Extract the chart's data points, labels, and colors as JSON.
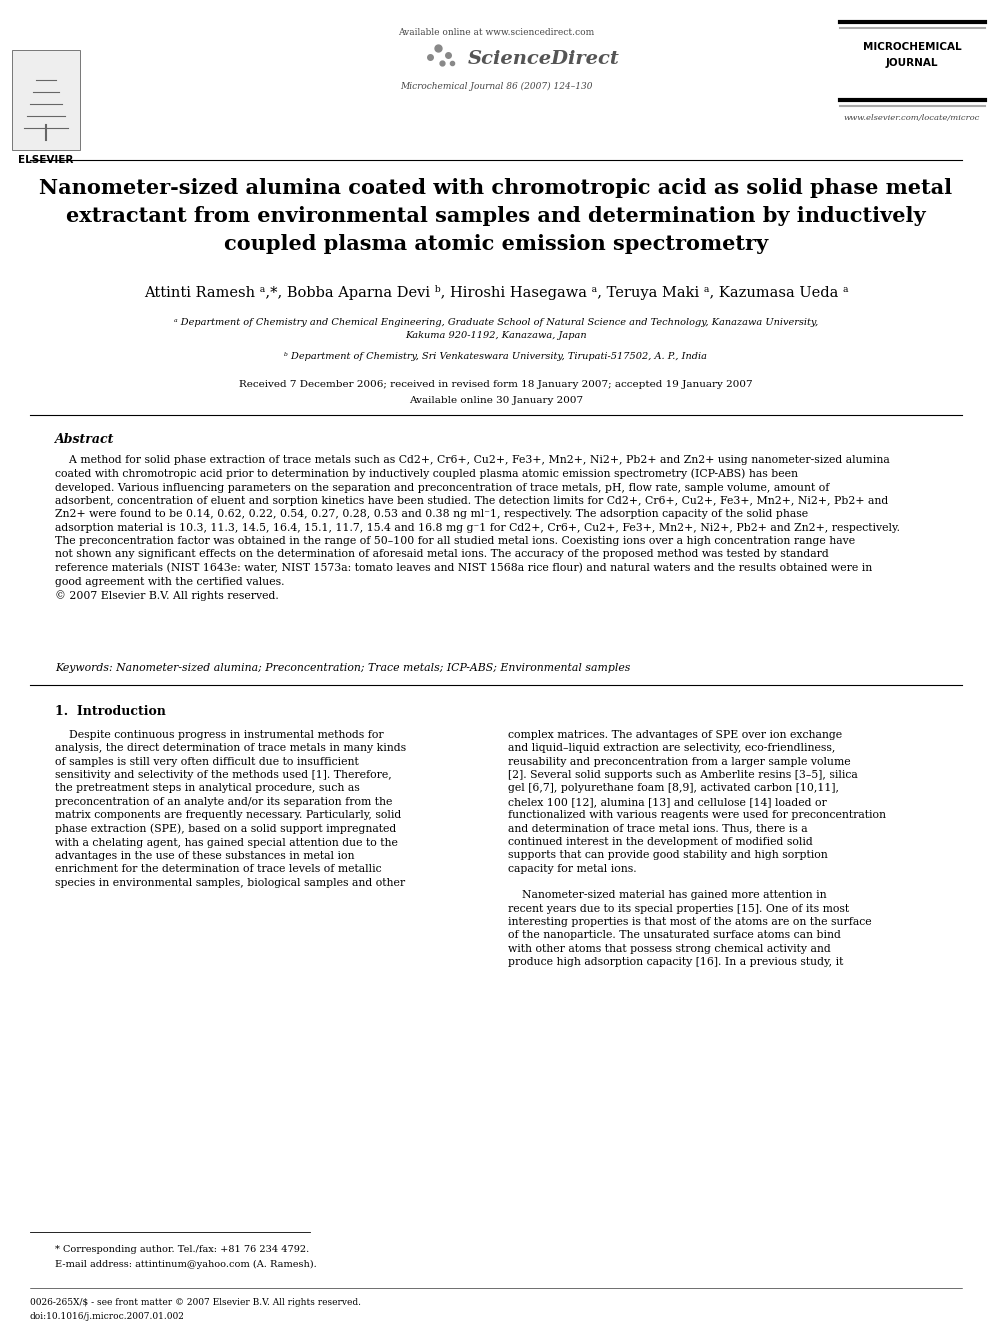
{
  "bg_color": "#ffffff",
  "header_available_online": "Available online at www.sciencedirect.com",
  "header_journal_name": "MICROCHEMICAL\nJOURNAL",
  "header_journal_ref": "Microchemical Journal 86 (2007) 124–130",
  "header_url": "www.elsevier.com/locate/microc",
  "title": "Nanometer-sized alumina coated with chromotropic acid as solid phase metal\nextractant from environmental samples and determination by inductively\ncoupled plasma atomic emission spectrometry",
  "authors": "Attinti Ramesh ᵃ,*, Bobba Aparna Devi ᵇ, Hiroshi Hasegawa ᵃ, Teruya Maki ᵃ, Kazumasa Ueda ᵃ",
  "affil_a": "ᵃ Department of Chemistry and Chemical Engineering, Graduate School of Natural Science and Technology, Kanazawa University,\nKakuma 920-1192, Kanazawa, Japan",
  "affil_b": "ᵇ Department of Chemistry, Sri Venkateswara University, Tirupati-517502, A. P., India",
  "received": "Received 7 December 2006; received in revised form 18 January 2007; accepted 19 January 2007",
  "available": "Available online 30 January 2007",
  "abstract_title": "Abstract",
  "abstract_text": "    A method for solid phase extraction of trace metals such as Cd2+, Cr6+, Cu2+, Fe3+, Mn2+, Ni2+, Pb2+ and Zn2+ using nanometer-sized alumina\ncoated with chromotropic acid prior to determination by inductively coupled plasma atomic emission spectrometry (ICP-ABS) has been\ndeveloped. Various influencing parameters on the separation and preconcentration of trace metals, pH, flow rate, sample volume, amount of\nadsorbent, concentration of eluent and sorption kinetics have been studied. The detection limits for Cd2+, Cr6+, Cu2+, Fe3+, Mn2+, Ni2+, Pb2+ and\nZn2+ were found to be 0.14, 0.62, 0.22, 0.54, 0.27, 0.28, 0.53 and 0.38 ng ml⁻1, respectively. The adsorption capacity of the solid phase\nadsorption material is 10.3, 11.3, 14.5, 16.4, 15.1, 11.7, 15.4 and 16.8 mg g⁻1 for Cd2+, Cr6+, Cu2+, Fe3+, Mn2+, Ni2+, Pb2+ and Zn2+, respectively.\nThe preconcentration factor was obtained in the range of 50–100 for all studied metal ions. Coexisting ions over a high concentration range have\nnot shown any significant effects on the determination of aforesaid metal ions. The accuracy of the proposed method was tested by standard\nreference materials (NIST 1643e: water, NIST 1573a: tomato leaves and NIST 1568a rice flour) and natural waters and the results obtained were in\ngood agreement with the certified values.\n© 2007 Elsevier B.V. All rights reserved.",
  "keywords": "Keywords: Nanometer-sized alumina; Preconcentration; Trace metals; ICP-ABS; Environmental samples",
  "section1_title": "1.  Introduction",
  "section1_col1": "    Despite continuous progress in instrumental methods for\nanalysis, the direct determination of trace metals in many kinds\nof samples is still very often difficult due to insufficient\nsensitivity and selectivity of the methods used [1]. Therefore,\nthe pretreatment steps in analytical procedure, such as\npreconcentration of an analyte and/or its separation from the\nmatrix components are frequently necessary. Particularly, solid\nphase extraction (SPE), based on a solid support impregnated\nwith a chelating agent, has gained special attention due to the\nadvantages in the use of these substances in metal ion\nenrichment for the determination of trace levels of metallic\nspecies in environmental samples, biological samples and other",
  "section1_col2": "complex matrices. The advantages of SPE over ion exchange\nand liquid–liquid extraction are selectivity, eco-friendliness,\nreusability and preconcentration from a larger sample volume\n[2]. Several solid supports such as Amberlite resins [3–5], silica\ngel [6,7], polyurethane foam [8,9], activated carbon [10,11],\nchelex 100 [12], alumina [13] and cellulose [14] loaded or\nfunctionalized with various reagents were used for preconcentration\nand determination of trace metal ions. Thus, there is a\ncontinued interest in the development of modified solid\nsupports that can provide good stability and high sorption\ncapacity for metal ions.\n\n    Nanometer-sized material has gained more attention in\nrecent years due to its special properties [15]. One of its most\ninteresting properties is that most of the atoms are on the surface\nof the nanoparticle. The unsaturated surface atoms can bind\nwith other atoms that possess strong chemical activity and\nproduce high adsorption capacity [16]. In a previous study, it",
  "footnote_star": "* Corresponding author. Tel./fax: +81 76 234 4792.",
  "footnote_email": "E-mail address: attintinum@yahoo.com (A. Ramesh).",
  "footer_issn": "0026-265X/$ - see front matter © 2007 Elsevier B.V. All rights reserved.",
  "footer_doi": "doi:10.1016/j.microc.2007.01.002"
}
